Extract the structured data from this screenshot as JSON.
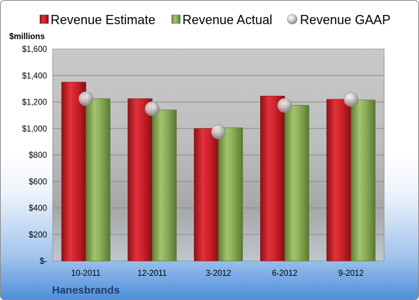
{
  "chart_data": {
    "type": "bar",
    "title": "",
    "company": "Hanesbrands",
    "ylabel": "$millions",
    "xlabel": "",
    "categories": [
      "10-2011",
      "12-2011",
      "3-2012",
      "6-2012",
      "9-2012"
    ],
    "y_tick_labels": [
      "$-",
      "$200",
      "$400",
      "$600",
      "$800",
      "$1,000",
      "$1,200",
      "$1,400",
      "$1,600"
    ],
    "y_ticks": [
      0,
      200,
      400,
      600,
      800,
      1000,
      1200,
      1400,
      1600
    ],
    "ylim": [
      0,
      1600
    ],
    "grid": true,
    "legend_position": "top",
    "series": [
      {
        "name": "Revenue Estimate",
        "kind": "bar",
        "color": "#c0202a",
        "values": [
          1350,
          1225,
          1000,
          1245,
          1220
        ]
      },
      {
        "name": "Revenue Actual",
        "kind": "bar",
        "color": "#8aab5a",
        "values": [
          1225,
          1140,
          1005,
          1175,
          1215
        ]
      },
      {
        "name": "Revenue GAAP",
        "kind": "marker",
        "color": "#b8b8b8",
        "values": [
          1225,
          1150,
          975,
          1175,
          1220
        ]
      }
    ]
  }
}
